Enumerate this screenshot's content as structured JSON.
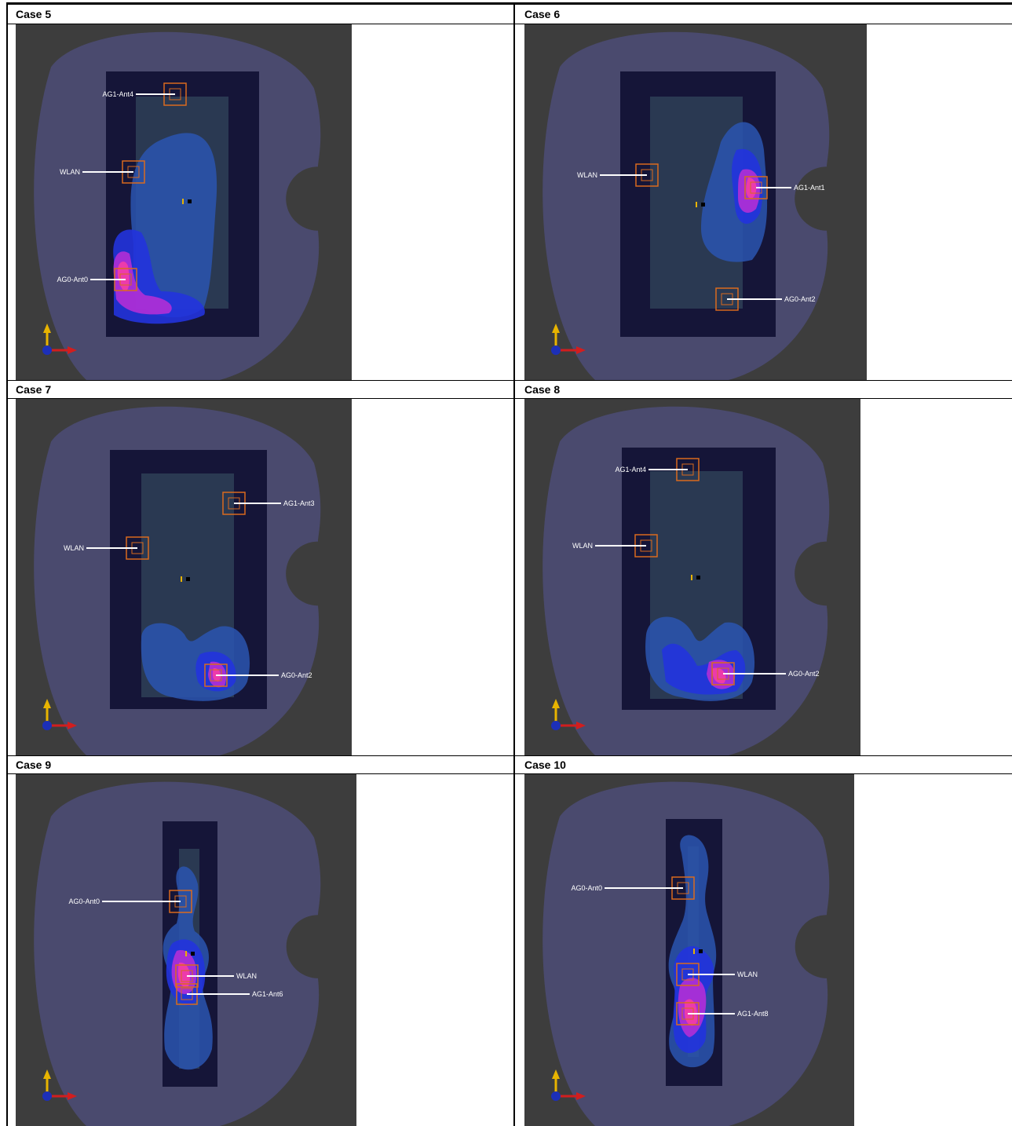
{
  "cells": [
    {
      "caption": "Case 5",
      "markers": [
        {
          "label": "AG1-Ant4",
          "side": "left"
        },
        {
          "label": "WLAN",
          "side": "left"
        },
        {
          "label": "AG0-Ant0",
          "side": "left"
        }
      ]
    },
    {
      "caption": "Case 6",
      "markers": [
        {
          "label": "WLAN",
          "side": "left"
        },
        {
          "label": "AG1-Ant1",
          "side": "right"
        },
        {
          "label": "AG0-Ant2",
          "side": "right"
        }
      ]
    },
    {
      "caption": "Case 7",
      "markers": [
        {
          "label": "AG1-Ant3",
          "side": "right"
        },
        {
          "label": "WLAN",
          "side": "left"
        },
        {
          "label": "AG0-Ant2",
          "side": "right"
        }
      ]
    },
    {
      "caption": "Case 8",
      "markers": [
        {
          "label": "AG1-Ant4",
          "side": "left"
        },
        {
          "label": "WLAN",
          "side": "left"
        },
        {
          "label": "AG0-Ant2",
          "side": "right"
        }
      ]
    },
    {
      "caption": "Case 9",
      "markers": [
        {
          "label": "AG0-Ant0",
          "side": "left"
        },
        {
          "label": "WLAN",
          "side": "right"
        },
        {
          "label": "AG1-Ant6",
          "side": "right"
        }
      ]
    },
    {
      "caption": "Case 10",
      "markers": [
        {
          "label": "AG0-Ant0",
          "side": "left"
        },
        {
          "label": "WLAN",
          "side": "right"
        },
        {
          "label": "AG1-Ant8",
          "side": "right"
        }
      ]
    }
  ],
  "colors": {
    "background": "#3d3d3d",
    "head_phantom": "#4a4a6e",
    "device_body": "#151538",
    "display": "#2c3d55",
    "field_low": "#2a55b0",
    "field_mid": "#2233dd",
    "field_high": "#b22fd6",
    "field_peak": "#ff3fa0",
    "marker": "#d96a1e",
    "axis_y": "#e8b400",
    "axis_x": "#d21e1e",
    "axis_z": "#1c2fb8"
  }
}
